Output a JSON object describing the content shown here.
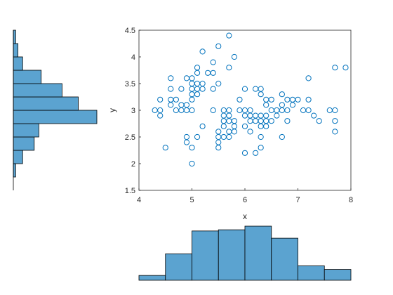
{
  "chart_data": [
    {
      "type": "scatter",
      "xlabel": "x",
      "ylabel": "y",
      "xlim": [
        4,
        8
      ],
      "ylim": [
        1.5,
        4.5
      ],
      "xticks": [
        "4",
        "5",
        "6",
        "7",
        "8"
      ],
      "yticks": [
        "1.5",
        "2",
        "2.5",
        "3",
        "3.5",
        "4",
        "4.5"
      ],
      "marker": "open-circle",
      "color": "#0072BD",
      "grid": false,
      "points": [
        [
          4.3,
          3.0
        ],
        [
          4.4,
          3.0
        ],
        [
          4.4,
          2.9
        ],
        [
          4.4,
          3.2
        ],
        [
          4.5,
          2.3
        ],
        [
          4.6,
          3.1
        ],
        [
          4.6,
          3.4
        ],
        [
          4.6,
          3.6
        ],
        [
          4.6,
          3.2
        ],
        [
          4.7,
          3.2
        ],
        [
          4.7,
          3.0
        ],
        [
          4.8,
          3.0
        ],
        [
          4.8,
          3.4
        ],
        [
          4.8,
          3.1
        ],
        [
          4.9,
          3.0
        ],
        [
          4.9,
          3.1
        ],
        [
          4.9,
          2.5
        ],
        [
          4.9,
          2.4
        ],
        [
          4.9,
          3.6
        ],
        [
          5.0,
          3.6
        ],
        [
          5.0,
          3.4
        ],
        [
          5.0,
          3.0
        ],
        [
          5.0,
          3.3
        ],
        [
          5.0,
          3.5
        ],
        [
          5.0,
          3.2
        ],
        [
          5.0,
          2.0
        ],
        [
          5.0,
          2.3
        ],
        [
          5.1,
          3.5
        ],
        [
          5.1,
          3.8
        ],
        [
          5.1,
          3.7
        ],
        [
          5.1,
          3.3
        ],
        [
          5.1,
          3.4
        ],
        [
          5.1,
          2.5
        ],
        [
          5.2,
          3.5
        ],
        [
          5.2,
          3.4
        ],
        [
          5.2,
          4.1
        ],
        [
          5.2,
          2.7
        ],
        [
          5.3,
          3.7
        ],
        [
          5.4,
          3.9
        ],
        [
          5.4,
          3.7
        ],
        [
          5.4,
          3.4
        ],
        [
          5.4,
          3.0
        ],
        [
          5.5,
          4.2
        ],
        [
          5.5,
          3.5
        ],
        [
          5.5,
          2.3
        ],
        [
          5.5,
          2.4
        ],
        [
          5.5,
          2.5
        ],
        [
          5.5,
          2.6
        ],
        [
          5.6,
          2.9
        ],
        [
          5.6,
          3.0
        ],
        [
          5.6,
          2.5
        ],
        [
          5.6,
          2.8
        ],
        [
          5.6,
          2.7
        ],
        [
          5.7,
          4.4
        ],
        [
          5.7,
          3.8
        ],
        [
          5.7,
          2.8
        ],
        [
          5.7,
          2.6
        ],
        [
          5.7,
          3.0
        ],
        [
          5.7,
          2.9
        ],
        [
          5.7,
          2.5
        ],
        [
          5.8,
          4.0
        ],
        [
          5.8,
          2.7
        ],
        [
          5.8,
          2.6
        ],
        [
          5.8,
          2.8
        ],
        [
          5.9,
          3.0
        ],
        [
          5.9,
          3.2
        ],
        [
          6.0,
          2.2
        ],
        [
          6.0,
          2.9
        ],
        [
          6.0,
          3.4
        ],
        [
          6.0,
          2.7
        ],
        [
          6.0,
          3.0
        ],
        [
          6.1,
          2.9
        ],
        [
          6.1,
          2.8
        ],
        [
          6.1,
          3.0
        ],
        [
          6.1,
          2.6
        ],
        [
          6.2,
          2.2
        ],
        [
          6.2,
          2.9
        ],
        [
          6.2,
          2.8
        ],
        [
          6.2,
          3.4
        ],
        [
          6.3,
          3.3
        ],
        [
          6.3,
          2.5
        ],
        [
          6.3,
          2.3
        ],
        [
          6.3,
          2.9
        ],
        [
          6.3,
          2.8
        ],
        [
          6.3,
          2.7
        ],
        [
          6.3,
          3.4
        ],
        [
          6.4,
          3.2
        ],
        [
          6.4,
          2.9
        ],
        [
          6.4,
          2.7
        ],
        [
          6.4,
          2.8
        ],
        [
          6.4,
          3.1
        ],
        [
          6.5,
          2.8
        ],
        [
          6.5,
          3.0
        ],
        [
          6.5,
          3.2
        ],
        [
          6.6,
          2.9
        ],
        [
          6.6,
          3.0
        ],
        [
          6.7,
          3.1
        ],
        [
          6.7,
          3.0
        ],
        [
          6.7,
          2.5
        ],
        [
          6.7,
          3.3
        ],
        [
          6.8,
          2.8
        ],
        [
          6.8,
          3.0
        ],
        [
          6.8,
          3.2
        ],
        [
          6.9,
          3.1
        ],
        [
          6.9,
          3.2
        ],
        [
          7.0,
          3.2
        ],
        [
          7.1,
          3.0
        ],
        [
          7.2,
          3.6
        ],
        [
          7.2,
          3.2
        ],
        [
          7.2,
          3.0
        ],
        [
          7.3,
          2.9
        ],
        [
          7.4,
          2.8
        ],
        [
          7.6,
          3.0
        ],
        [
          7.7,
          3.8
        ],
        [
          7.7,
          2.6
        ],
        [
          7.7,
          2.8
        ],
        [
          7.7,
          3.0
        ],
        [
          7.9,
          3.8
        ]
      ]
    },
    {
      "type": "bar",
      "orientation": "vertical",
      "description_role": "marginal histogram of x",
      "bin_edges": [
        4,
        4.5,
        5,
        5.5,
        6,
        6.5,
        7,
        7.5,
        8
      ],
      "values": [
        4,
        22,
        41,
        42,
        45,
        35,
        12,
        9
      ],
      "color": "#4DBEEE",
      "bar_color": "#5BA3D0"
    },
    {
      "type": "bar",
      "orientation": "horizontal",
      "description_role": "marginal histogram of y",
      "bin_edges": [
        1.5,
        1.75,
        2,
        2.25,
        2.5,
        2.75,
        3,
        3.25,
        3.5,
        3.75,
        4,
        4.25,
        4.5
      ],
      "values": [
        0,
        1,
        4,
        9,
        11,
        36,
        28,
        21,
        12,
        4,
        2,
        1
      ],
      "bar_color": "#5BA3D0"
    }
  ]
}
